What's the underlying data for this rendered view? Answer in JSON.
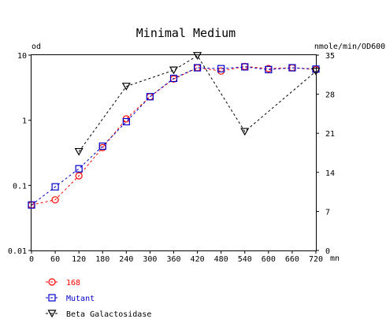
{
  "chart_data": {
    "type": "line",
    "title": "Minimal Medium",
    "ylabel_left": "od",
    "ylabel_right": "nmole/min/OD600",
    "x_unit": "mn",
    "x": [
      0,
      60,
      120,
      180,
      240,
      300,
      360,
      420,
      480,
      540,
      600,
      660,
      720
    ],
    "x_ticks": [
      "0",
      "60",
      "120",
      "180",
      "240",
      "300",
      "360",
      "420",
      "480",
      "540",
      "600",
      "660",
      "720"
    ],
    "xlim": [
      0,
      720
    ],
    "y_left_scale": "log",
    "y_left_lim": [
      0.01,
      10
    ],
    "y_left_ticks": [
      {
        "value": 0.01,
        "label": "0.01"
      },
      {
        "value": 0.1,
        "label": "0.1"
      },
      {
        "value": 1,
        "label": "1"
      },
      {
        "value": 10,
        "label": "10"
      }
    ],
    "y_right_lim": [
      0,
      35
    ],
    "y_right_ticks": [
      {
        "value": 0,
        "label": "0"
      },
      {
        "value": 7,
        "label": "7"
      },
      {
        "value": 14,
        "label": "14"
      },
      {
        "value": 21,
        "label": "21"
      },
      {
        "value": 28,
        "label": "28"
      },
      {
        "value": 35,
        "label": "35"
      }
    ],
    "grid": false,
    "legend_position": "bottom-left",
    "series": [
      {
        "name": "168",
        "axis": "left",
        "color": "#ff0000",
        "marker": "circle",
        "x": [
          0,
          60,
          120,
          180,
          240,
          300,
          360,
          420,
          480,
          540,
          600,
          660,
          720
        ],
        "values": [
          0.05,
          0.06,
          0.14,
          0.38,
          1.05,
          2.3,
          4.3,
          6.4,
          5.7,
          6.7,
          6.2,
          6.4,
          6.0
        ]
      },
      {
        "name": "Mutant",
        "axis": "left",
        "color": "#0000cc",
        "marker": "square",
        "x": [
          0,
          60,
          120,
          180,
          240,
          300,
          360,
          420,
          480,
          540,
          600,
          660,
          720
        ],
        "values": [
          0.05,
          0.095,
          0.18,
          0.4,
          0.95,
          2.3,
          4.4,
          6.4,
          6.2,
          6.6,
          6.0,
          6.4,
          6.1
        ]
      },
      {
        "name": "Beta Galactosidase",
        "axis": "right",
        "color": "#000000",
        "marker": "triangle-down",
        "x": [
          120,
          240,
          360,
          420,
          540,
          720
        ],
        "values": [
          17.7,
          29.4,
          32.3,
          34.9,
          21.3,
          32.1
        ]
      }
    ]
  }
}
